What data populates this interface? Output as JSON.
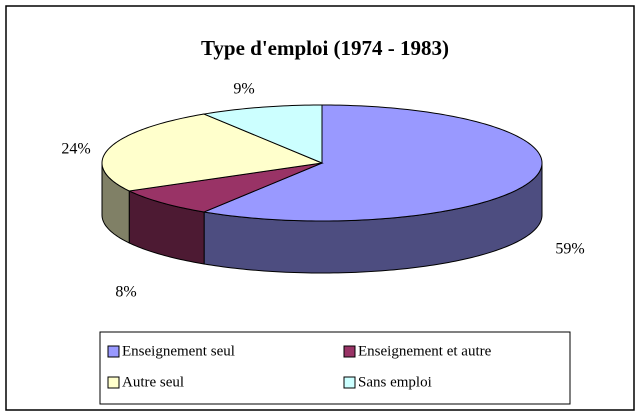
{
  "chart_data": {
    "type": "pie3d",
    "title": "Type d'emploi (1974 - 1983)",
    "categories": [
      "Enseignement seul",
      "Enseignement et autre",
      "Autre seul",
      "Sans emploi"
    ],
    "values": [
      59,
      8,
      24,
      9
    ],
    "value_labels": [
      "59%",
      "8%",
      "24%",
      "9%"
    ],
    "colors": [
      "#9999ff",
      "#993366",
      "#ffffcc",
      "#ccffff"
    ],
    "legend": "bottom"
  }
}
